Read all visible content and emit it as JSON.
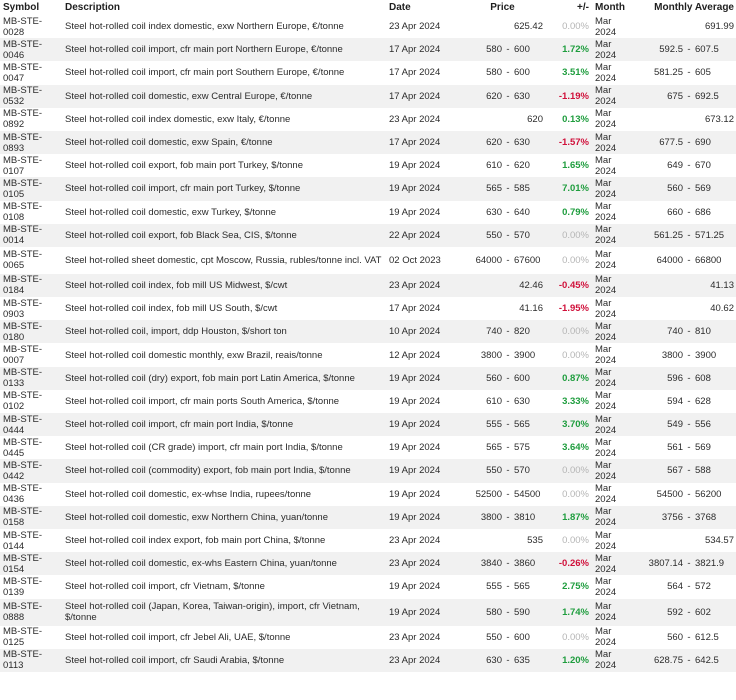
{
  "headers": {
    "symbol": "Symbol",
    "description": "Description",
    "date": "Date",
    "price": "Price",
    "change": "+/-",
    "month": "Month",
    "monthly_average": "Monthly Average"
  },
  "rows": [
    {
      "symbol": "MB-STE-0028",
      "description": "Steel hot-rolled coil index domestic, exw Northern Europe, €/tonne",
      "date": "23 Apr 2024",
      "price_low": "",
      "price_high": "625.42",
      "change": "0.00%",
      "change_dir": "zero",
      "month": "Mar 2024",
      "avg_low": "",
      "avg_high": "691.99"
    },
    {
      "symbol": "MB-STE-0046",
      "description": "Steel hot-rolled coil import, cfr main port Northern Europe, €/tonne",
      "date": "17 Apr 2024",
      "price_low": "580",
      "price_high": "600",
      "change": "1.72%",
      "change_dir": "pos",
      "month": "Mar 2024",
      "avg_low": "592.5",
      "avg_high": "607.5"
    },
    {
      "symbol": "MB-STE-0047",
      "description": "Steel hot-rolled coil import, cfr main port Southern Europe, €/tonne",
      "date": "17 Apr 2024",
      "price_low": "580",
      "price_high": "600",
      "change": "3.51%",
      "change_dir": "pos",
      "month": "Mar 2024",
      "avg_low": "581.25",
      "avg_high": "605"
    },
    {
      "symbol": "MB-STE-0532",
      "description": "Steel hot-rolled coil domestic, exw Central Europe, €/tonne",
      "date": "17 Apr 2024",
      "price_low": "620",
      "price_high": "630",
      "change": "-1.19%",
      "change_dir": "neg",
      "month": "Mar 2024",
      "avg_low": "675",
      "avg_high": "692.5"
    },
    {
      "symbol": "MB-STE-0892",
      "description": "Steel hot-rolled coil index domestic, exw Italy, €/tonne",
      "date": "23 Apr 2024",
      "price_low": "",
      "price_high": "620",
      "change": "0.13%",
      "change_dir": "pos",
      "month": "Mar 2024",
      "avg_low": "",
      "avg_high": "673.12"
    },
    {
      "symbol": "MB-STE-0893",
      "description": "Steel hot-rolled coil domestic, exw Spain, €/tonne",
      "date": "17 Apr 2024",
      "price_low": "620",
      "price_high": "630",
      "change": "-1.57%",
      "change_dir": "neg",
      "month": "Mar 2024",
      "avg_low": "677.5",
      "avg_high": "690"
    },
    {
      "symbol": "MB-STE-0107",
      "description": "Steel hot-rolled coil export, fob main port Turkey, $/tonne",
      "date": "19 Apr 2024",
      "price_low": "610",
      "price_high": "620",
      "change": "1.65%",
      "change_dir": "pos",
      "month": "Mar 2024",
      "avg_low": "649",
      "avg_high": "670"
    },
    {
      "symbol": "MB-STE-0105",
      "description": "Steel hot-rolled coil import, cfr main port Turkey, $/tonne",
      "date": "19 Apr 2024",
      "price_low": "565",
      "price_high": "585",
      "change": "7.01%",
      "change_dir": "pos",
      "month": "Mar 2024",
      "avg_low": "560",
      "avg_high": "569"
    },
    {
      "symbol": "MB-STE-0108",
      "description": "Steel hot-rolled coil domestic, exw Turkey, $/tonne",
      "date": "19 Apr 2024",
      "price_low": "630",
      "price_high": "640",
      "change": "0.79%",
      "change_dir": "pos",
      "month": "Mar 2024",
      "avg_low": "660",
      "avg_high": "686"
    },
    {
      "symbol": "MB-STE-0014",
      "description": "Steel hot-rolled coil export, fob Black Sea, CIS, $/tonne",
      "date": "22 Apr 2024",
      "price_low": "550",
      "price_high": "570",
      "change": "0.00%",
      "change_dir": "zero",
      "month": "Mar 2024",
      "avg_low": "561.25",
      "avg_high": "571.25"
    },
    {
      "symbol": "MB-STE-0065",
      "description": "Steel hot-rolled sheet domestic, cpt Moscow, Russia, rubles/tonne incl. VAT",
      "date": "02 Oct 2023",
      "price_low": "64000",
      "price_high": "67600",
      "change": "0.00%",
      "change_dir": "zero",
      "month": "Mar 2024",
      "avg_low": "64000",
      "avg_high": "66800",
      "tall": true
    },
    {
      "symbol": "MB-STE-0184",
      "description": "Steel hot-rolled coil index, fob mill US Midwest, $/cwt",
      "date": "23 Apr 2024",
      "price_low": "",
      "price_high": "42.46",
      "change": "-0.45%",
      "change_dir": "neg",
      "month": "Mar 2024",
      "avg_low": "",
      "avg_high": "41.13"
    },
    {
      "symbol": "MB-STE-0903",
      "description": "Steel hot-rolled coil index, fob mill US South, $/cwt",
      "date": "17 Apr 2024",
      "price_low": "",
      "price_high": "41.16",
      "change": "-1.95%",
      "change_dir": "neg",
      "month": "Mar 2024",
      "avg_low": "",
      "avg_high": "40.62"
    },
    {
      "symbol": "MB-STE-0180",
      "description": "Steel hot-rolled coil, import, ddp Houston, $/short ton",
      "date": "10 Apr 2024",
      "price_low": "740",
      "price_high": "820",
      "change": "0.00%",
      "change_dir": "zero",
      "month": "Mar 2024",
      "avg_low": "740",
      "avg_high": "810"
    },
    {
      "symbol": "MB-STE-0007",
      "description": "Steel hot-rolled coil domestic monthly, exw Brazil, reais/tonne",
      "date": "12 Apr 2024",
      "price_low": "3800",
      "price_high": "3900",
      "change": "0.00%",
      "change_dir": "zero",
      "month": "Mar 2024",
      "avg_low": "3800",
      "avg_high": "3900"
    },
    {
      "symbol": "MB-STE-0133",
      "description": "Steel hot-rolled coil (dry) export, fob main port Latin America, $/tonne",
      "date": "19 Apr 2024",
      "price_low": "560",
      "price_high": "600",
      "change": "0.87%",
      "change_dir": "pos",
      "month": "Mar 2024",
      "avg_low": "596",
      "avg_high": "608"
    },
    {
      "symbol": "MB-STE-0102",
      "description": "Steel hot-rolled coil import, cfr main ports South America, $/tonne",
      "date": "19 Apr 2024",
      "price_low": "610",
      "price_high": "630",
      "change": "3.33%",
      "change_dir": "pos",
      "month": "Mar 2024",
      "avg_low": "594",
      "avg_high": "628"
    },
    {
      "symbol": "MB-STE-0444",
      "description": "Steel hot-rolled coil import, cfr main port India, $/tonne",
      "date": "19 Apr 2024",
      "price_low": "555",
      "price_high": "565",
      "change": "3.70%",
      "change_dir": "pos",
      "month": "Mar 2024",
      "avg_low": "549",
      "avg_high": "556"
    },
    {
      "symbol": "MB-STE-0445",
      "description": "Steel hot-rolled coil (CR grade) import, cfr main port India, $/tonne",
      "date": "19 Apr 2024",
      "price_low": "565",
      "price_high": "575",
      "change": "3.64%",
      "change_dir": "pos",
      "month": "Mar 2024",
      "avg_low": "561",
      "avg_high": "569"
    },
    {
      "symbol": "MB-STE-0442",
      "description": "Steel hot-rolled coil (commodity) export, fob main port India, $/tonne",
      "date": "19 Apr 2024",
      "price_low": "550",
      "price_high": "570",
      "change": "0.00%",
      "change_dir": "zero",
      "month": "Mar 2024",
      "avg_low": "567",
      "avg_high": "588"
    },
    {
      "symbol": "MB-STE-0436",
      "description": "Steel hot-rolled coil domestic, ex-whse India, rupees/tonne",
      "date": "19 Apr 2024",
      "price_low": "52500",
      "price_high": "54500",
      "change": "0.00%",
      "change_dir": "zero",
      "month": "Mar 2024",
      "avg_low": "54500",
      "avg_high": "56200"
    },
    {
      "symbol": "MB-STE-0158",
      "description": "Steel hot-rolled coil domestic, exw Northern China, yuan/tonne",
      "date": "19 Apr 2024",
      "price_low": "3800",
      "price_high": "3810",
      "change": "1.87%",
      "change_dir": "pos",
      "month": "Mar 2024",
      "avg_low": "3756",
      "avg_high": "3768"
    },
    {
      "symbol": "MB-STE-0144",
      "description": "Steel hot-rolled coil index export, fob main port China, $/tonne",
      "date": "23 Apr 2024",
      "price_low": "",
      "price_high": "535",
      "change": "0.00%",
      "change_dir": "zero",
      "month": "Mar 2024",
      "avg_low": "",
      "avg_high": "534.57"
    },
    {
      "symbol": "MB-STE-0154",
      "description": "Steel hot-rolled coil domestic, ex-whs Eastern China, yuan/tonne",
      "date": "23 Apr 2024",
      "price_low": "3840",
      "price_high": "3860",
      "change": "-0.26%",
      "change_dir": "neg",
      "month": "Mar 2024",
      "avg_low": "3807.14",
      "avg_high": "3821.9"
    },
    {
      "symbol": "MB-STE-0139",
      "description": "Steel hot-rolled coil import, cfr Vietnam, $/tonne",
      "date": "19 Apr 2024",
      "price_low": "555",
      "price_high": "565",
      "change": "2.75%",
      "change_dir": "pos",
      "month": "Mar 2024",
      "avg_low": "564",
      "avg_high": "572"
    },
    {
      "symbol": "MB-STE-0888",
      "description": "Steel hot-rolled coil (Japan, Korea, Taiwan-origin), import, cfr Vietnam, $/tonne",
      "date": "19 Apr 2024",
      "price_low": "580",
      "price_high": "590",
      "change": "1.74%",
      "change_dir": "pos",
      "month": "Mar 2024",
      "avg_low": "592",
      "avg_high": "602",
      "tall": true
    },
    {
      "symbol": "MB-STE-0125",
      "description": "Steel hot-rolled coil import, cfr Jebel Ali, UAE, $/tonne",
      "date": "23 Apr 2024",
      "price_low": "550",
      "price_high": "600",
      "change": "0.00%",
      "change_dir": "zero",
      "month": "Mar 2024",
      "avg_low": "560",
      "avg_high": "612.5"
    },
    {
      "symbol": "MB-STE-0113",
      "description": "Steel hot-rolled coil import, cfr Saudi Arabia, $/tonne",
      "date": "23 Apr 2024",
      "price_low": "630",
      "price_high": "635",
      "change": "1.20%",
      "change_dir": "pos",
      "month": "Mar 2024",
      "avg_low": "628.75",
      "avg_high": "642.5"
    }
  ],
  "colors": {
    "positive": "#1f9d3e",
    "negative": "#d0103a",
    "neutral": "#b5b5b5",
    "stripe": "#f1f1f1"
  }
}
